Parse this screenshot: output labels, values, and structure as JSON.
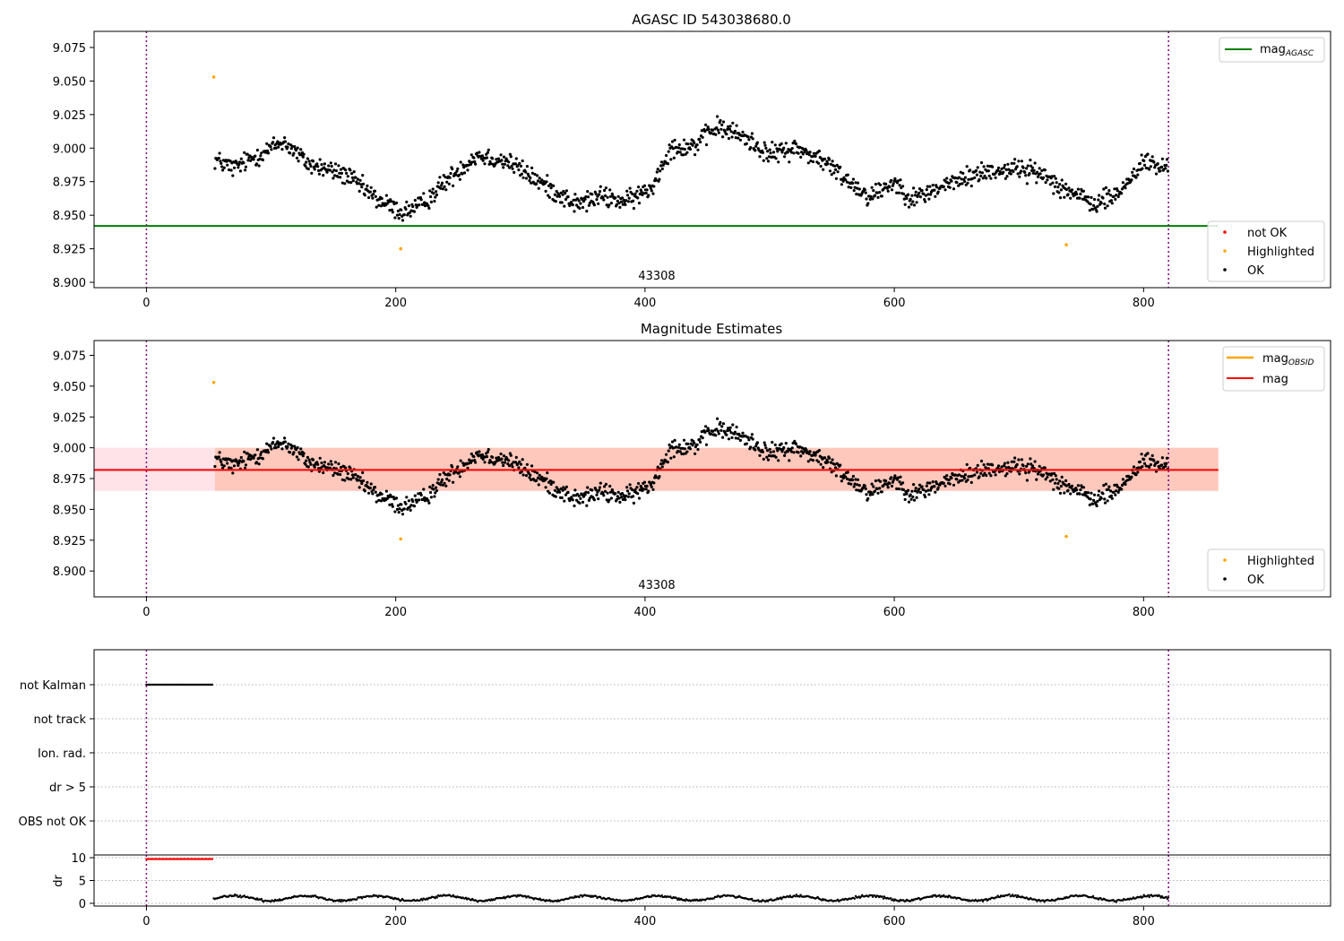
{
  "chart_data": [
    {
      "id": "agasc",
      "type": "scatter",
      "title": "AGASC ID 543038680.0",
      "annotation": "43308",
      "xlim": [
        -42,
        950
      ],
      "ylim": [
        8.896,
        9.087
      ],
      "xticks": [
        0,
        200,
        400,
        600,
        800
      ],
      "yticks": [
        8.9,
        8.925,
        8.95,
        8.975,
        9.0,
        9.025,
        9.05,
        9.075
      ],
      "ytick_labels": [
        "8.900",
        "8.925",
        "8.950",
        "8.975",
        "9.000",
        "9.025",
        "9.050",
        "9.075"
      ],
      "vlines": [
        0,
        820
      ],
      "hline": {
        "name": "mag",
        "sub": "AGASC",
        "y": 8.942,
        "color": "#008000"
      },
      "legend_lines": [
        {
          "label": "mag",
          "sub": "AGASC",
          "color": "#008000"
        }
      ],
      "legend_points": [
        {
          "label": "not OK",
          "color": "#ff0000"
        },
        {
          "label": "Highlighted",
          "color": "#ffa500"
        },
        {
          "label": "OK",
          "color": "#000000"
        }
      ],
      "highlighted": [
        [
          54,
          9.053
        ],
        [
          204,
          8.925
        ],
        [
          738,
          8.928
        ]
      ]
    },
    {
      "id": "estimates",
      "type": "scatter",
      "title": "Magnitude Estimates",
      "annotation": "43308",
      "xlim": [
        -42,
        950
      ],
      "ylim": [
        8.879,
        9.087
      ],
      "xticks": [
        0,
        200,
        400,
        600,
        800
      ],
      "yticks": [
        8.9,
        8.925,
        8.95,
        8.975,
        9.0,
        9.025,
        9.05,
        9.075
      ],
      "ytick_labels": [
        "8.900",
        "8.925",
        "8.950",
        "8.975",
        "9.000",
        "9.025",
        "9.050",
        "9.075"
      ],
      "vlines": [
        0,
        820
      ],
      "mag_line": {
        "y": 8.982,
        "color": "#ff0000"
      },
      "band": {
        "y0": 8.965,
        "y1": 9.0,
        "x0": -42,
        "x1": 860
      },
      "obsid_band": {
        "y0": 8.965,
        "y1": 9.0,
        "x0": 55,
        "x1": 860
      },
      "legend_lines": [
        {
          "label": "mag",
          "sub": "OBSID",
          "color": "#ffa500"
        },
        {
          "label": "mag",
          "sub": "",
          "color": "#ff0000"
        }
      ],
      "legend_points": [
        {
          "label": "Highlighted",
          "color": "#ffa500"
        },
        {
          "label": "OK",
          "color": "#000000"
        }
      ],
      "highlighted": [
        [
          54,
          9.053
        ],
        [
          204,
          8.926
        ],
        [
          738,
          8.928
        ]
      ]
    },
    {
      "id": "flags",
      "type": "scatter",
      "xlim": [
        -42,
        950
      ],
      "categories": [
        "not Kalman",
        "not track",
        "Ion. rad.",
        "dr > 5",
        "OBS not OK"
      ],
      "flag_spans": [
        {
          "category": "not Kalman",
          "x0": 0,
          "x1": 53
        }
      ]
    },
    {
      "id": "dr",
      "type": "scatter",
      "ylabel": "dr",
      "xlim": [
        -42,
        950
      ],
      "ylim": [
        -0.6,
        10.6
      ],
      "yticks": [
        0,
        5,
        10
      ],
      "xticks": [
        0,
        200,
        400,
        600,
        800
      ],
      "red_span": {
        "x0": 0,
        "x1": 53,
        "y": 9.7
      },
      "black_range": {
        "x0": 54,
        "x1": 820
      }
    }
  ]
}
